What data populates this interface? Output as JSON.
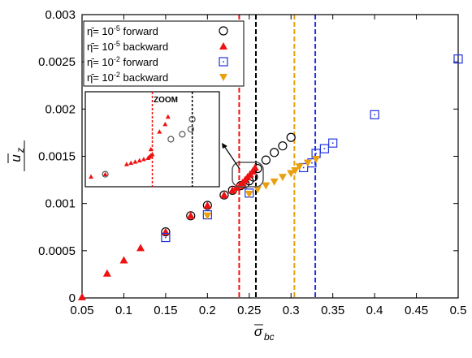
{
  "chart_data": {
    "type": "scatter",
    "xlim": [
      0.05,
      0.5
    ],
    "ylim": [
      0,
      0.003
    ],
    "x_ticks": [
      "0.05",
      "0.1",
      "0.15",
      "0.2",
      "0.25",
      "0.3",
      "0.35",
      "0.4",
      "0.45",
      "0.5"
    ],
    "y_ticks": [
      "0",
      "0.0005",
      "0.001",
      "0.0015",
      "0.002",
      "0.0025",
      "0.003"
    ],
    "x_tick_values": [
      0.05,
      0.1,
      0.15,
      0.2,
      0.25,
      0.3,
      0.35,
      0.4,
      0.45,
      0.5
    ],
    "y_tick_values": [
      0,
      0.0005,
      0.001,
      0.0015,
      0.002,
      0.0025,
      0.003
    ],
    "xlabel": {
      "bar": "σ",
      "sub": "bc"
    },
    "ylabel": {
      "bar": "u",
      "sub": "z"
    },
    "grid": false,
    "legend_position": "top-left",
    "series": [
      {
        "name_base": "η̄= 10",
        "exp": "-5",
        "name_rest": " forward",
        "marker": "circle",
        "color": "#000000",
        "x": [
          0.15,
          0.18,
          0.2,
          0.22,
          0.23,
          0.24,
          0.245,
          0.25,
          0.255,
          0.26,
          0.27,
          0.28,
          0.29,
          0.3
        ],
        "y": [
          0.0007,
          0.00087,
          0.00098,
          0.00109,
          0.00114,
          0.00119,
          0.00121,
          0.00124,
          0.00128,
          0.00137,
          0.00146,
          0.00154,
          0.00161,
          0.0017
        ]
      },
      {
        "name_base": "η̄= 10",
        "exp": "-5",
        "name_rest": " backward",
        "marker": "triangle-up",
        "color": "#ee1111",
        "x": [
          0.05,
          0.08,
          0.1,
          0.12,
          0.15,
          0.18,
          0.2,
          0.22,
          0.23,
          0.235,
          0.239,
          0.242,
          0.245,
          0.248,
          0.251,
          0.254,
          0.257
        ],
        "y": [
          1e-05,
          0.00026,
          0.0004,
          0.00053,
          0.0007,
          0.00087,
          0.00098,
          0.00109,
          0.00114,
          0.00117,
          0.00119,
          0.00122,
          0.00125,
          0.00128,
          0.00131,
          0.00134,
          0.00138
        ]
      },
      {
        "name_base": "η̄= 10",
        "exp": "-2",
        "name_rest": " forward",
        "marker": "square",
        "color": "#2233dd",
        "x": [
          0.15,
          0.2,
          0.25,
          0.315,
          0.325,
          0.33,
          0.34,
          0.35,
          0.4,
          0.5
        ],
        "y": [
          0.00064,
          0.00088,
          0.00111,
          0.00138,
          0.00143,
          0.00153,
          0.00158,
          0.00164,
          0.00194,
          0.00253
        ]
      },
      {
        "name_base": "η̄= 10",
        "exp": "-2",
        "name_rest": " backward",
        "marker": "triangle-down",
        "color": "#e8a010",
        "x": [
          0.2,
          0.25,
          0.26,
          0.27,
          0.28,
          0.29,
          0.3,
          0.305,
          0.31,
          0.32,
          0.33
        ],
        "y": [
          0.00087,
          0.0011,
          0.00115,
          0.00119,
          0.00123,
          0.00128,
          0.00132,
          0.00135,
          0.00139,
          0.00143,
          0.00147
        ]
      }
    ],
    "vlines": [
      {
        "x": 0.238,
        "color": "#ee1111"
      },
      {
        "x": 0.258,
        "color": "#000000"
      },
      {
        "x": 0.304,
        "color": "#e8a010"
      },
      {
        "x": 0.329,
        "color": "#2233dd"
      }
    ],
    "inset": {
      "label": "ZOOM",
      "xlim": [
        0.215,
        0.262
      ],
      "ylim": [
        0.00104,
        0.00142
      ],
      "vlines": [
        {
          "x": 0.2385,
          "color": "#ee1111"
        },
        {
          "x": 0.2525,
          "color": "#000000"
        }
      ],
      "circles": {
        "x": [
          0.222,
          0.245,
          0.249,
          0.252,
          0.2525
        ],
        "y": [
          0.00109,
          0.00123,
          0.00125,
          0.00127,
          0.00131
        ]
      },
      "triangles": {
        "x": [
          0.217,
          0.222,
          0.2295,
          0.231,
          0.2325,
          0.234,
          0.2355,
          0.237,
          0.2375,
          0.238,
          0.2385,
          0.238,
          0.241,
          0.243,
          0.244
        ],
        "y": [
          0.00108,
          0.00109,
          0.00113,
          0.001135,
          0.00114,
          0.001145,
          0.00115,
          0.001155,
          0.00116,
          0.001165,
          0.00117,
          0.00119,
          0.00126,
          0.00129,
          0.00132
        ]
      }
    }
  }
}
